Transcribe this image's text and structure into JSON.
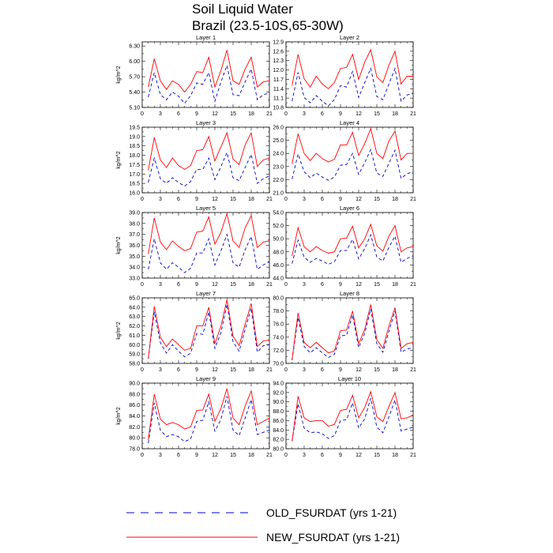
{
  "figure": {
    "title_line1": "Soil Liquid Water",
    "title_line2": "Brazil (23.5-10S,65-30W)"
  },
  "legend": {
    "items": [
      {
        "label": "OLD_FSURDAT (yrs 1-21)",
        "color": "#0000cc",
        "style": "dashed"
      },
      {
        "label": "NEW_FSURDAT (yrs 1-21)",
        "color": "#ff0000",
        "style": "solid"
      }
    ]
  },
  "chart_data": [
    {
      "type": "line",
      "title": "Layer 1",
      "ylabel": "kg/m^2",
      "x": [
        1,
        2,
        3,
        4,
        5,
        6,
        7,
        8,
        9,
        10,
        11,
        12,
        13,
        14,
        15,
        16,
        17,
        18,
        19,
        20,
        21
      ],
      "xlim": [
        0,
        21
      ],
      "xticks": [
        0,
        3,
        6,
        9,
        12,
        15,
        18,
        21
      ],
      "ylim": [
        5.1,
        6.38
      ],
      "yticks": [
        "5.10",
        "5.40",
        "5.70",
        "6.00",
        "6.30"
      ],
      "series": [
        {
          "name": "OLD_FSURDAT (yrs 1-21)",
          "values": [
            5.3,
            5.78,
            5.35,
            5.25,
            5.4,
            5.32,
            5.18,
            5.33,
            5.58,
            5.55,
            5.78,
            5.22,
            5.6,
            5.92,
            5.35,
            5.33,
            5.6,
            5.85,
            5.25,
            5.35,
            5.38
          ]
        },
        {
          "name": "NEW_FSURDAT (yrs 1-21)",
          "values": [
            5.5,
            6.05,
            5.62,
            5.45,
            5.62,
            5.55,
            5.4,
            5.55,
            5.8,
            5.78,
            6.08,
            5.5,
            5.82,
            6.22,
            5.62,
            5.55,
            5.85,
            6.08,
            5.5,
            5.6,
            5.62
          ]
        }
      ]
    },
    {
      "type": "line",
      "title": "Layer 2",
      "ylabel": "",
      "x": [
        1,
        2,
        3,
        4,
        5,
        6,
        7,
        8,
        9,
        10,
        11,
        12,
        13,
        14,
        15,
        16,
        17,
        18,
        19,
        20,
        21
      ],
      "xlim": [
        0,
        21
      ],
      "xticks": [
        0,
        3,
        6,
        9,
        12,
        15,
        18,
        21
      ],
      "ylim": [
        10.8,
        12.9
      ],
      "yticks": [
        "10.8",
        "11.1",
        "11.4",
        "11.7",
        "12.0",
        "12.3",
        "12.6",
        "12.9"
      ],
      "series": [
        {
          "name": "OLD_FSURDAT (yrs 1-21)",
          "values": [
            11.0,
            11.92,
            11.12,
            10.95,
            11.18,
            11.0,
            10.85,
            11.05,
            11.5,
            11.45,
            11.95,
            11.12,
            11.6,
            12.05,
            11.15,
            11.05,
            11.55,
            12.05,
            11.0,
            11.2,
            11.25
          ]
        },
        {
          "name": "NEW_FSURDAT (yrs 1-21)",
          "values": [
            11.5,
            12.5,
            11.72,
            11.45,
            11.8,
            11.55,
            11.4,
            11.6,
            12.05,
            12.08,
            12.5,
            11.7,
            12.25,
            12.65,
            11.78,
            11.6,
            12.15,
            12.6,
            11.55,
            11.8,
            11.8
          ]
        }
      ]
    },
    {
      "type": "line",
      "title": "Layer 3",
      "ylabel": "kg/m^2",
      "x": [
        1,
        2,
        3,
        4,
        5,
        6,
        7,
        8,
        9,
        10,
        11,
        12,
        13,
        14,
        15,
        16,
        17,
        18,
        19,
        20,
        21
      ],
      "xlim": [
        0,
        21
      ],
      "xticks": [
        0,
        3,
        6,
        9,
        12,
        15,
        18,
        21
      ],
      "ylim": [
        16.0,
        19.5
      ],
      "yticks": [
        "16.0",
        "16.5",
        "17.0",
        "17.5",
        "18.0",
        "18.5",
        "19.0",
        "19.5"
      ],
      "series": [
        {
          "name": "OLD_FSURDAT (yrs 1-21)",
          "values": [
            16.55,
            17.85,
            16.75,
            16.5,
            16.8,
            16.55,
            16.35,
            16.6,
            17.25,
            17.25,
            17.85,
            16.7,
            17.4,
            18.15,
            16.8,
            16.65,
            17.35,
            18.05,
            16.5,
            16.75,
            16.9
          ]
        },
        {
          "name": "NEW_FSURDAT (yrs 1-21)",
          "values": [
            17.2,
            18.95,
            17.75,
            17.35,
            17.85,
            17.45,
            17.25,
            17.45,
            18.25,
            18.3,
            19.0,
            17.7,
            18.45,
            19.2,
            17.8,
            17.5,
            18.55,
            19.2,
            17.4,
            17.75,
            17.85
          ]
        }
      ]
    },
    {
      "type": "line",
      "title": "Layer 4",
      "ylabel": "",
      "x": [
        1,
        2,
        3,
        4,
        5,
        6,
        7,
        8,
        9,
        10,
        11,
        12,
        13,
        14,
        15,
        16,
        17,
        18,
        19,
        20,
        21
      ],
      "xlim": [
        0,
        21
      ],
      "xticks": [
        0,
        3,
        6,
        9,
        12,
        15,
        18,
        21
      ],
      "ylim": [
        21.0,
        26.0
      ],
      "yticks": [
        "21.0",
        "22.0",
        "23.0",
        "24.0",
        "25.0",
        "26.0"
      ],
      "series": [
        {
          "name": "OLD_FSURDAT (yrs 1-21)",
          "values": [
            22.05,
            23.95,
            22.6,
            22.15,
            22.5,
            22.2,
            21.95,
            22.2,
            23.1,
            23.15,
            24.0,
            22.4,
            23.3,
            24.3,
            22.5,
            22.25,
            23.25,
            24.25,
            22.1,
            22.45,
            22.6
          ]
        },
        {
          "name": "NEW_FSURDAT (yrs 1-21)",
          "values": [
            23.2,
            25.5,
            24.0,
            23.45,
            24.0,
            23.6,
            23.35,
            23.55,
            24.65,
            24.65,
            25.6,
            23.85,
            24.75,
            25.9,
            24.0,
            23.6,
            24.95,
            25.7,
            23.5,
            24.0,
            24.0
          ]
        }
      ]
    },
    {
      "type": "line",
      "title": "Layer 5",
      "ylabel": "kg/m^2",
      "x": [
        1,
        2,
        3,
        4,
        5,
        6,
        7,
        8,
        9,
        10,
        11,
        12,
        13,
        14,
        15,
        16,
        17,
        18,
        19,
        20,
        21
      ],
      "xlim": [
        0,
        21
      ],
      "xticks": [
        0,
        3,
        6,
        9,
        12,
        15,
        18,
        21
      ],
      "ylim": [
        33.0,
        39.0
      ],
      "yticks": [
        "33.0",
        "34.0",
        "35.0",
        "36.0",
        "37.0",
        "38.0",
        "39.0"
      ],
      "series": [
        {
          "name": "OLD_FSURDAT (yrs 1-21)",
          "values": [
            33.8,
            36.6,
            34.4,
            33.8,
            34.4,
            34.0,
            33.5,
            33.9,
            35.3,
            35.3,
            36.6,
            34.2,
            35.5,
            37.0,
            34.4,
            34.0,
            35.6,
            36.8,
            33.8,
            34.2,
            34.5
          ]
        },
        {
          "name": "NEW_FSURDAT (yrs 1-21)",
          "values": [
            35.2,
            38.5,
            36.3,
            35.6,
            36.4,
            35.9,
            35.5,
            35.7,
            37.2,
            37.3,
            38.6,
            36.1,
            37.2,
            38.9,
            36.4,
            35.8,
            37.6,
            38.7,
            35.8,
            36.3,
            36.4
          ]
        }
      ]
    },
    {
      "type": "line",
      "title": "Layer 6",
      "ylabel": "",
      "x": [
        1,
        2,
        3,
        4,
        5,
        6,
        7,
        8,
        9,
        10,
        11,
        12,
        13,
        14,
        15,
        16,
        17,
        18,
        19,
        20,
        21
      ],
      "xlim": [
        0,
        21
      ],
      "xticks": [
        0,
        3,
        6,
        9,
        12,
        15,
        18,
        21
      ],
      "ylim": [
        44.0,
        54.0
      ],
      "yticks": [
        "44.0",
        "46.0",
        "48.0",
        "50.0",
        "52.0",
        "54.0"
      ],
      "series": [
        {
          "name": "OLD_FSURDAT (yrs 1-21)",
          "values": [
            46.2,
            49.8,
            47.2,
            46.4,
            47.0,
            46.6,
            46.1,
            46.5,
            48.2,
            48.2,
            49.9,
            46.9,
            48.5,
            50.6,
            47.2,
            46.6,
            48.7,
            50.4,
            46.4,
            47.0,
            47.4
          ]
        },
        {
          "name": "NEW_FSURDAT (yrs 1-21)",
          "values": [
            47.4,
            51.7,
            48.8,
            48.0,
            48.8,
            48.2,
            47.8,
            48.0,
            50.0,
            50.1,
            51.9,
            48.6,
            50.0,
            52.2,
            48.9,
            48.1,
            50.4,
            52.0,
            48.0,
            48.6,
            48.8
          ]
        }
      ]
    },
    {
      "type": "line",
      "title": "Layer 7",
      "ylabel": "kg/m^2",
      "x": [
        1,
        2,
        3,
        4,
        5,
        6,
        7,
        8,
        9,
        10,
        11,
        12,
        13,
        14,
        15,
        16,
        17,
        18,
        19,
        20,
        21
      ],
      "xlim": [
        0,
        21
      ],
      "xticks": [
        0,
        3,
        6,
        9,
        12,
        15,
        18,
        21
      ],
      "ylim": [
        58.0,
        65.0
      ],
      "yticks": [
        "58.0",
        "59.0",
        "60.0",
        "61.0",
        "62.0",
        "63.0",
        "64.0",
        "65.0"
      ],
      "series": [
        {
          "name": "OLD_FSURDAT (yrs 1-21)",
          "values": [
            58.5,
            63.5,
            60.2,
            59.1,
            60.0,
            59.3,
            58.7,
            59.1,
            61.2,
            61.1,
            63.5,
            59.6,
            61.3,
            64.3,
            60.3,
            59.3,
            61.6,
            63.9,
            59.2,
            59.9,
            60.0
          ]
        },
        {
          "name": "NEW_FSURDAT (yrs 1-21)",
          "values": [
            58.5,
            64.1,
            60.8,
            59.8,
            60.6,
            60.0,
            59.4,
            59.6,
            62.0,
            62.0,
            64.0,
            60.1,
            62.0,
            64.8,
            60.9,
            59.9,
            62.2,
            64.4,
            59.8,
            60.4,
            60.5
          ]
        }
      ]
    },
    {
      "type": "line",
      "title": "Layer 8",
      "ylabel": "",
      "x": [
        1,
        2,
        3,
        4,
        5,
        6,
        7,
        8,
        9,
        10,
        11,
        12,
        13,
        14,
        15,
        16,
        17,
        18,
        19,
        20,
        21
      ],
      "xlim": [
        0,
        21
      ],
      "xticks": [
        0,
        3,
        6,
        9,
        12,
        15,
        18,
        21
      ],
      "ylim": [
        70.0,
        80.0
      ],
      "yticks": [
        "70.0",
        "72.0",
        "74.0",
        "76.0",
        "78.0",
        "80.0"
      ],
      "series": [
        {
          "name": "OLD_FSURDAT (yrs 1-21)",
          "values": [
            70.5,
            77.0,
            72.6,
            71.6,
            72.4,
            71.6,
            70.9,
            71.4,
            74.2,
            74.3,
            77.4,
            72.4,
            74.6,
            78.3,
            73.0,
            71.7,
            74.9,
            78.0,
            71.7,
            72.2,
            72.4
          ]
        },
        {
          "name": "NEW_FSURDAT (yrs 1-21)",
          "values": [
            70.6,
            77.7,
            73.2,
            72.4,
            73.2,
            72.4,
            71.6,
            71.9,
            75.0,
            75.1,
            78.0,
            73.0,
            75.2,
            79.0,
            73.6,
            72.3,
            75.7,
            78.5,
            72.3,
            73.0,
            73.2
          ]
        }
      ]
    },
    {
      "type": "line",
      "title": "Layer 9",
      "ylabel": "kg/m^2",
      "x": [
        1,
        2,
        3,
        4,
        5,
        6,
        7,
        8,
        9,
        10,
        11,
        12,
        13,
        14,
        15,
        16,
        17,
        18,
        19,
        20,
        21
      ],
      "xlim": [
        0,
        21
      ],
      "xticks": [
        0,
        3,
        6,
        9,
        12,
        15,
        18,
        21
      ],
      "ylim": [
        78.0,
        90.0
      ],
      "yticks": [
        "78.0",
        "80.0",
        "82.0",
        "84.0",
        "86.0",
        "88.0",
        "90.0"
      ],
      "series": [
        {
          "name": "OLD_FSURDAT (yrs 1-21)",
          "values": [
            79.0,
            86.4,
            81.4,
            80.2,
            80.6,
            80.2,
            79.3,
            79.8,
            83.0,
            83.2,
            86.6,
            81.2,
            83.4,
            87.6,
            81.4,
            80.4,
            83.6,
            87.0,
            80.6,
            81.0,
            81.4
          ]
        },
        {
          "name": "NEW_FSURDAT (yrs 1-21)",
          "values": [
            79.6,
            88.0,
            83.4,
            82.4,
            82.8,
            82.4,
            81.6,
            82.0,
            85.0,
            85.1,
            88.0,
            83.0,
            85.4,
            89.0,
            83.6,
            82.4,
            85.8,
            88.6,
            82.4,
            83.0,
            83.6
          ]
        }
      ]
    },
    {
      "type": "line",
      "title": "Layer 10",
      "ylabel": "",
      "x": [
        1,
        2,
        3,
        4,
        5,
        6,
        7,
        8,
        9,
        10,
        11,
        12,
        13,
        14,
        15,
        16,
        17,
        18,
        19,
        20,
        21
      ],
      "xlim": [
        0,
        21
      ],
      "xticks": [
        0,
        3,
        6,
        9,
        12,
        15,
        18,
        21
      ],
      "ylim": [
        80.0,
        94.0
      ],
      "yticks": [
        "80.0",
        "82.0",
        "84.0",
        "86.0",
        "88.0",
        "90.0",
        "92.0",
        "94.0"
      ],
      "series": [
        {
          "name": "OLD_FSURDAT (yrs 1-21)",
          "values": [
            81.6,
            89.6,
            84.4,
            83.4,
            83.6,
            83.2,
            82.2,
            82.8,
            86.0,
            86.2,
            89.8,
            84.4,
            86.4,
            90.8,
            84.6,
            83.4,
            86.8,
            90.4,
            83.8,
            84.2,
            84.6
          ]
        },
        {
          "name": "NEW_FSURDAT (yrs 1-21)",
          "values": [
            81.6,
            91.2,
            86.6,
            85.8,
            86.0,
            86.0,
            84.8,
            85.2,
            88.2,
            88.4,
            91.4,
            86.6,
            88.8,
            92.2,
            86.8,
            85.8,
            89.0,
            92.0,
            86.4,
            86.6,
            87.2
          ]
        }
      ]
    }
  ]
}
